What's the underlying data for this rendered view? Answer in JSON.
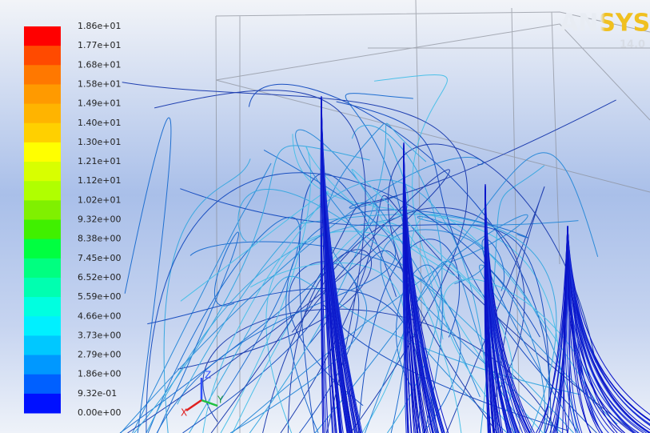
{
  "logo": {
    "name": "ANSYS",
    "version": "14.0"
  },
  "legend": {
    "labels": [
      "1.86e+01",
      "1.77e+01",
      "1.68e+01",
      "1.58e+01",
      "1.49e+01",
      "1.40e+01",
      "1.30e+01",
      "1.21e+01",
      "1.12e+01",
      "1.02e+01",
      "9.32e+00",
      "8.38e+00",
      "7.45e+00",
      "6.52e+00",
      "5.59e+00",
      "4.66e+00",
      "3.73e+00",
      "2.79e+00",
      "1.86e+00",
      "9.32e-01",
      "0.00e+00"
    ],
    "colors": [
      "#ff0000",
      "#ff4a00",
      "#ff7800",
      "#ff9a00",
      "#ffb400",
      "#ffd000",
      "#ffff00",
      "#d8ff00",
      "#b0ff00",
      "#80f000",
      "#40f000",
      "#00ff40",
      "#00ff80",
      "#00ffb0",
      "#00ffe0",
      "#00f0ff",
      "#00c8ff",
      "#0098ff",
      "#0060ff",
      "#0010ff"
    ]
  },
  "axes": {
    "x": "X",
    "y": "Y",
    "z": "Z"
  }
}
